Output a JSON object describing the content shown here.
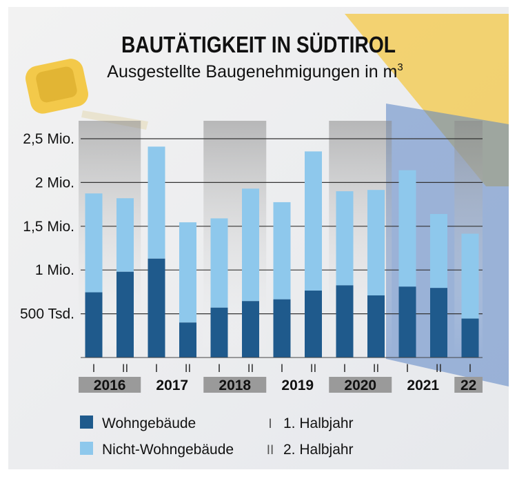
{
  "title": "BAUTÄTIGKEIT IN SÜDTIROL",
  "subtitle_main": "Ausgestellte Baugenehmigungen in m",
  "subtitle_sup": "3",
  "legend": {
    "wohn": "Wohngebäude",
    "nicht_wohn": "Nicht-Wohngebäude",
    "h1_mark": "I",
    "h1_label": "1. Halbjahr",
    "h2_mark": "II",
    "h2_label": "2. Halbjahr"
  },
  "colors": {
    "wohn": "#1f5a8c",
    "nicht_wohn": "#8ec8ec",
    "year_band_dark": "#9a9a9a",
    "grid": "#333333"
  },
  "chart_data": {
    "type": "bar",
    "stacked": true,
    "categories": [
      "I",
      "II",
      "I",
      "II",
      "I",
      "II",
      "I",
      "II",
      "I",
      "II",
      "I",
      "II",
      "I"
    ],
    "years": [
      {
        "label": "2016",
        "bars": 2,
        "shaded": true
      },
      {
        "label": "2017",
        "bars": 2,
        "shaded": false
      },
      {
        "label": "2018",
        "bars": 2,
        "shaded": true
      },
      {
        "label": "2019",
        "bars": 2,
        "shaded": false
      },
      {
        "label": "2020",
        "bars": 2,
        "shaded": true
      },
      {
        "label": "2021",
        "bars": 2,
        "shaded": false
      },
      {
        "label": "22",
        "bars": 1,
        "shaded": true
      }
    ],
    "series": [
      {
        "name": "Wohngebäude",
        "values": [
          745000,
          980000,
          1130000,
          400000,
          570000,
          645000,
          665000,
          765000,
          825000,
          710000,
          810000,
          795000,
          445000
        ]
      },
      {
        "name": "Nicht-Wohngebäude",
        "values": [
          1130000,
          840000,
          1280000,
          1145000,
          1020000,
          1285000,
          1110000,
          1590000,
          1075000,
          1205000,
          1330000,
          845000,
          970000
        ]
      }
    ],
    "ylim": [
      0,
      2500000
    ],
    "yticks": [
      {
        "value": 500000,
        "label": "500 Tsd."
      },
      {
        "value": 1000000,
        "label": "1 Mio."
      },
      {
        "value": 1500000,
        "label": "1,5 Mio."
      },
      {
        "value": 2000000,
        "label": "2 Mio."
      },
      {
        "value": 2500000,
        "label": "2,5 Mio."
      }
    ],
    "grid": true,
    "legend_position": "bottom-left"
  }
}
